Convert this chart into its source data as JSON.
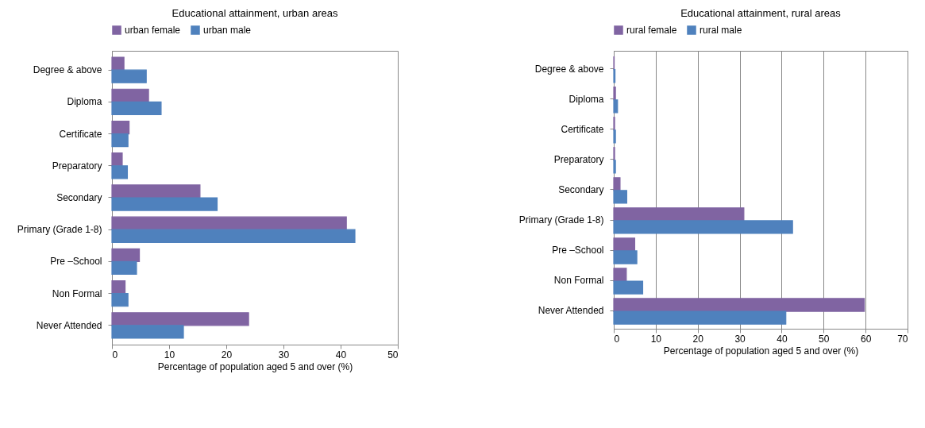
{
  "chart_data": [
    {
      "type": "bar",
      "orientation": "horizontal",
      "title": "Educational attainment, urban areas",
      "xlabel": "Percentage of population aged 5 and over (%)",
      "categories": [
        "Degree & above",
        "Diploma",
        "Certificate",
        "Preparatory",
        "Secondary",
        "Primary (Grade 1-8)",
        "Pre –School",
        "Non Formal",
        "Never Attended"
      ],
      "xlim": [
        0,
        50
      ],
      "xticks": [
        0,
        10,
        20,
        30,
        40,
        50
      ],
      "legend": "top",
      "grid": false,
      "series": [
        {
          "name": "urban female",
          "color": "#8064a2",
          "values": [
            2.1,
            6.4,
            3.0,
            1.8,
            15.4,
            41.0,
            4.8,
            2.3,
            23.9
          ]
        },
        {
          "name": "urban male",
          "color": "#4f81bd",
          "values": [
            6.0,
            8.6,
            2.8,
            2.7,
            18.4,
            42.5,
            4.3,
            2.8,
            12.5
          ]
        }
      ]
    },
    {
      "type": "bar",
      "orientation": "horizontal",
      "title": "Educational attainment, rural areas",
      "xlabel": "Percentage of population aged 5 and over (%)",
      "categories": [
        "Degree & above",
        "Diploma",
        "Certificate",
        "Preparatory",
        "Secondary",
        "Primary (Grade 1-8)",
        "Pre –School",
        "Non Formal",
        "Never Attended"
      ],
      "xlim": [
        0,
        70
      ],
      "xticks": [
        0,
        10,
        20,
        30,
        40,
        50,
        60,
        70
      ],
      "legend": "top",
      "grid": "x",
      "series": [
        {
          "name": "rural female",
          "color": "#8064a2",
          "values": [
            0.1,
            0.4,
            0.2,
            0.2,
            1.5,
            31.0,
            5.0,
            3.0,
            59.7
          ]
        },
        {
          "name": "rural male",
          "color": "#4f81bd",
          "values": [
            0.3,
            0.9,
            0.4,
            0.4,
            3.1,
            42.6,
            5.5,
            6.9,
            41.0
          ]
        }
      ]
    }
  ]
}
